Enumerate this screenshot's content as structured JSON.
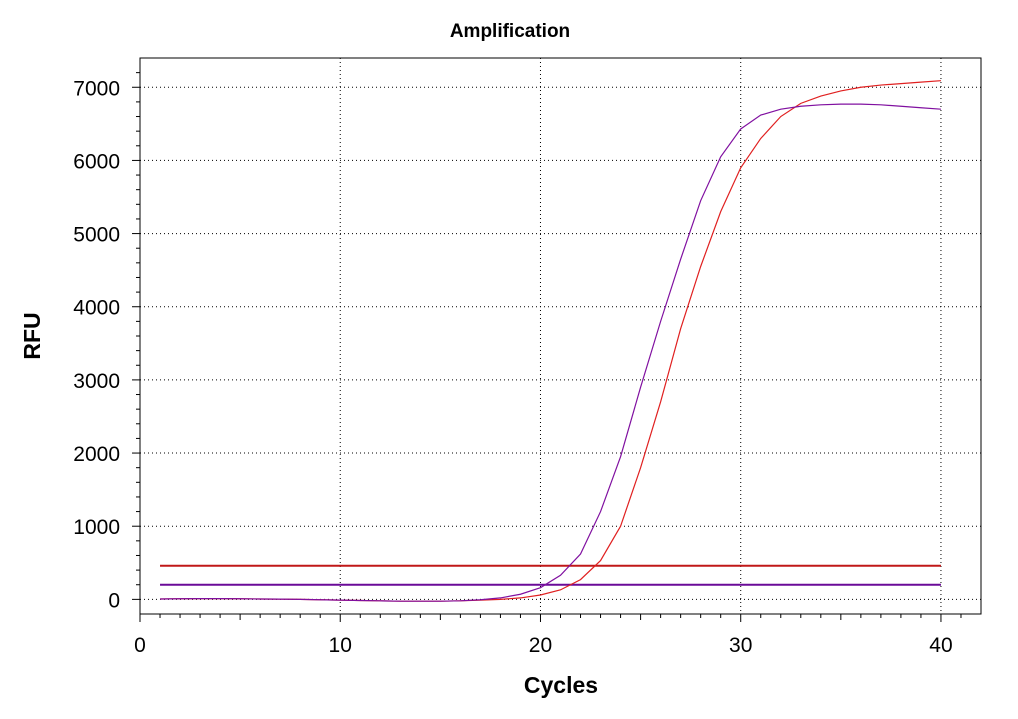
{
  "chart_data": {
    "type": "line",
    "title": "Amplification",
    "xlabel": "Cycles",
    "ylabel": "RFU",
    "xlim": [
      0,
      42
    ],
    "ylim": [
      -200,
      7400
    ],
    "x_ticks": [
      0,
      10,
      20,
      30,
      40
    ],
    "y_ticks": [
      0,
      1000,
      2000,
      3000,
      4000,
      5000,
      6000,
      7000
    ],
    "grid": true,
    "x": [
      1,
      2,
      3,
      4,
      5,
      6,
      7,
      8,
      9,
      10,
      11,
      12,
      13,
      14,
      15,
      16,
      17,
      18,
      19,
      20,
      21,
      22,
      23,
      24,
      25,
      26,
      27,
      28,
      29,
      30,
      31,
      32,
      33,
      34,
      35,
      36,
      37,
      38,
      39,
      40
    ],
    "series": [
      {
        "color": "#e02020",
        "values": [
          5,
          8,
          10,
          10,
          8,
          5,
          3,
          0,
          -5,
          -10,
          -15,
          -20,
          -25,
          -25,
          -25,
          -20,
          -10,
          0,
          20,
          60,
          130,
          270,
          530,
          1000,
          1800,
          2700,
          3700,
          4550,
          5300,
          5900,
          6300,
          6600,
          6780,
          6880,
          6950,
          7000,
          7030,
          7050,
          7070,
          7090
        ]
      },
      {
        "color": "#8010a0",
        "values": [
          5,
          8,
          10,
          10,
          8,
          5,
          3,
          0,
          -5,
          -10,
          -15,
          -20,
          -25,
          -25,
          -25,
          -20,
          -5,
          20,
          70,
          160,
          330,
          620,
          1200,
          1950,
          2900,
          3800,
          4650,
          5450,
          6050,
          6430,
          6620,
          6700,
          6740,
          6760,
          6770,
          6770,
          6760,
          6740,
          6720,
          6700
        ]
      }
    ],
    "threshold_lines": [
      {
        "value": 460,
        "color": "#c01818"
      },
      {
        "value": 200,
        "color": "#6a0a98"
      }
    ]
  }
}
